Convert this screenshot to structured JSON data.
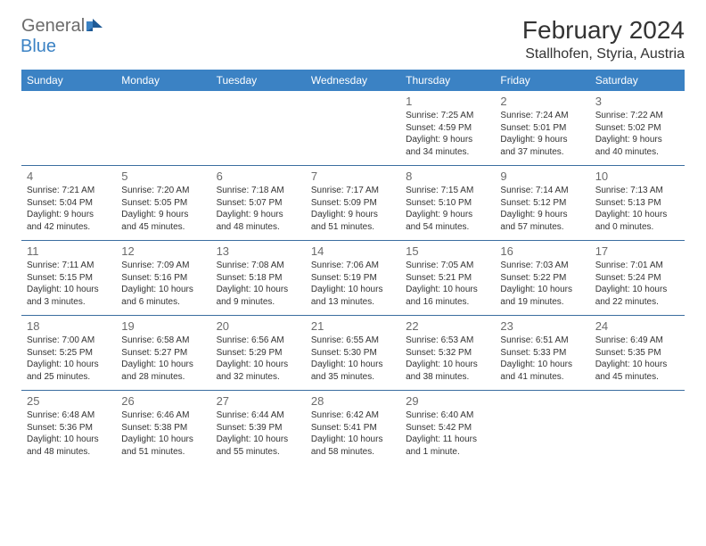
{
  "logo": {
    "general": "General",
    "blue": "Blue"
  },
  "header": {
    "title": "February 2024",
    "location": "Stallhofen, Styria, Austria"
  },
  "weekdays": [
    "Sunday",
    "Monday",
    "Tuesday",
    "Wednesday",
    "Thursday",
    "Friday",
    "Saturday"
  ],
  "colors": {
    "header_bg": "#3b82c4",
    "header_text": "#ffffff",
    "border": "#3b6ea0",
    "daynum": "#6b6b6b",
    "body_text": "#333333",
    "logo_gray": "#6b6b6b",
    "logo_blue": "#3b82c4"
  },
  "weeks": [
    [
      null,
      null,
      null,
      null,
      {
        "n": "1",
        "sr": "Sunrise: 7:25 AM",
        "ss": "Sunset: 4:59 PM",
        "d1": "Daylight: 9 hours",
        "d2": "and 34 minutes."
      },
      {
        "n": "2",
        "sr": "Sunrise: 7:24 AM",
        "ss": "Sunset: 5:01 PM",
        "d1": "Daylight: 9 hours",
        "d2": "and 37 minutes."
      },
      {
        "n": "3",
        "sr": "Sunrise: 7:22 AM",
        "ss": "Sunset: 5:02 PM",
        "d1": "Daylight: 9 hours",
        "d2": "and 40 minutes."
      }
    ],
    [
      {
        "n": "4",
        "sr": "Sunrise: 7:21 AM",
        "ss": "Sunset: 5:04 PM",
        "d1": "Daylight: 9 hours",
        "d2": "and 42 minutes."
      },
      {
        "n": "5",
        "sr": "Sunrise: 7:20 AM",
        "ss": "Sunset: 5:05 PM",
        "d1": "Daylight: 9 hours",
        "d2": "and 45 minutes."
      },
      {
        "n": "6",
        "sr": "Sunrise: 7:18 AM",
        "ss": "Sunset: 5:07 PM",
        "d1": "Daylight: 9 hours",
        "d2": "and 48 minutes."
      },
      {
        "n": "7",
        "sr": "Sunrise: 7:17 AM",
        "ss": "Sunset: 5:09 PM",
        "d1": "Daylight: 9 hours",
        "d2": "and 51 minutes."
      },
      {
        "n": "8",
        "sr": "Sunrise: 7:15 AM",
        "ss": "Sunset: 5:10 PM",
        "d1": "Daylight: 9 hours",
        "d2": "and 54 minutes."
      },
      {
        "n": "9",
        "sr": "Sunrise: 7:14 AM",
        "ss": "Sunset: 5:12 PM",
        "d1": "Daylight: 9 hours",
        "d2": "and 57 minutes."
      },
      {
        "n": "10",
        "sr": "Sunrise: 7:13 AM",
        "ss": "Sunset: 5:13 PM",
        "d1": "Daylight: 10 hours",
        "d2": "and 0 minutes."
      }
    ],
    [
      {
        "n": "11",
        "sr": "Sunrise: 7:11 AM",
        "ss": "Sunset: 5:15 PM",
        "d1": "Daylight: 10 hours",
        "d2": "and 3 minutes."
      },
      {
        "n": "12",
        "sr": "Sunrise: 7:09 AM",
        "ss": "Sunset: 5:16 PM",
        "d1": "Daylight: 10 hours",
        "d2": "and 6 minutes."
      },
      {
        "n": "13",
        "sr": "Sunrise: 7:08 AM",
        "ss": "Sunset: 5:18 PM",
        "d1": "Daylight: 10 hours",
        "d2": "and 9 minutes."
      },
      {
        "n": "14",
        "sr": "Sunrise: 7:06 AM",
        "ss": "Sunset: 5:19 PM",
        "d1": "Daylight: 10 hours",
        "d2": "and 13 minutes."
      },
      {
        "n": "15",
        "sr": "Sunrise: 7:05 AM",
        "ss": "Sunset: 5:21 PM",
        "d1": "Daylight: 10 hours",
        "d2": "and 16 minutes."
      },
      {
        "n": "16",
        "sr": "Sunrise: 7:03 AM",
        "ss": "Sunset: 5:22 PM",
        "d1": "Daylight: 10 hours",
        "d2": "and 19 minutes."
      },
      {
        "n": "17",
        "sr": "Sunrise: 7:01 AM",
        "ss": "Sunset: 5:24 PM",
        "d1": "Daylight: 10 hours",
        "d2": "and 22 minutes."
      }
    ],
    [
      {
        "n": "18",
        "sr": "Sunrise: 7:00 AM",
        "ss": "Sunset: 5:25 PM",
        "d1": "Daylight: 10 hours",
        "d2": "and 25 minutes."
      },
      {
        "n": "19",
        "sr": "Sunrise: 6:58 AM",
        "ss": "Sunset: 5:27 PM",
        "d1": "Daylight: 10 hours",
        "d2": "and 28 minutes."
      },
      {
        "n": "20",
        "sr": "Sunrise: 6:56 AM",
        "ss": "Sunset: 5:29 PM",
        "d1": "Daylight: 10 hours",
        "d2": "and 32 minutes."
      },
      {
        "n": "21",
        "sr": "Sunrise: 6:55 AM",
        "ss": "Sunset: 5:30 PM",
        "d1": "Daylight: 10 hours",
        "d2": "and 35 minutes."
      },
      {
        "n": "22",
        "sr": "Sunrise: 6:53 AM",
        "ss": "Sunset: 5:32 PM",
        "d1": "Daylight: 10 hours",
        "d2": "and 38 minutes."
      },
      {
        "n": "23",
        "sr": "Sunrise: 6:51 AM",
        "ss": "Sunset: 5:33 PM",
        "d1": "Daylight: 10 hours",
        "d2": "and 41 minutes."
      },
      {
        "n": "24",
        "sr": "Sunrise: 6:49 AM",
        "ss": "Sunset: 5:35 PM",
        "d1": "Daylight: 10 hours",
        "d2": "and 45 minutes."
      }
    ],
    [
      {
        "n": "25",
        "sr": "Sunrise: 6:48 AM",
        "ss": "Sunset: 5:36 PM",
        "d1": "Daylight: 10 hours",
        "d2": "and 48 minutes."
      },
      {
        "n": "26",
        "sr": "Sunrise: 6:46 AM",
        "ss": "Sunset: 5:38 PM",
        "d1": "Daylight: 10 hours",
        "d2": "and 51 minutes."
      },
      {
        "n": "27",
        "sr": "Sunrise: 6:44 AM",
        "ss": "Sunset: 5:39 PM",
        "d1": "Daylight: 10 hours",
        "d2": "and 55 minutes."
      },
      {
        "n": "28",
        "sr": "Sunrise: 6:42 AM",
        "ss": "Sunset: 5:41 PM",
        "d1": "Daylight: 10 hours",
        "d2": "and 58 minutes."
      },
      {
        "n": "29",
        "sr": "Sunrise: 6:40 AM",
        "ss": "Sunset: 5:42 PM",
        "d1": "Daylight: 11 hours",
        "d2": "and 1 minute."
      },
      null,
      null
    ]
  ]
}
